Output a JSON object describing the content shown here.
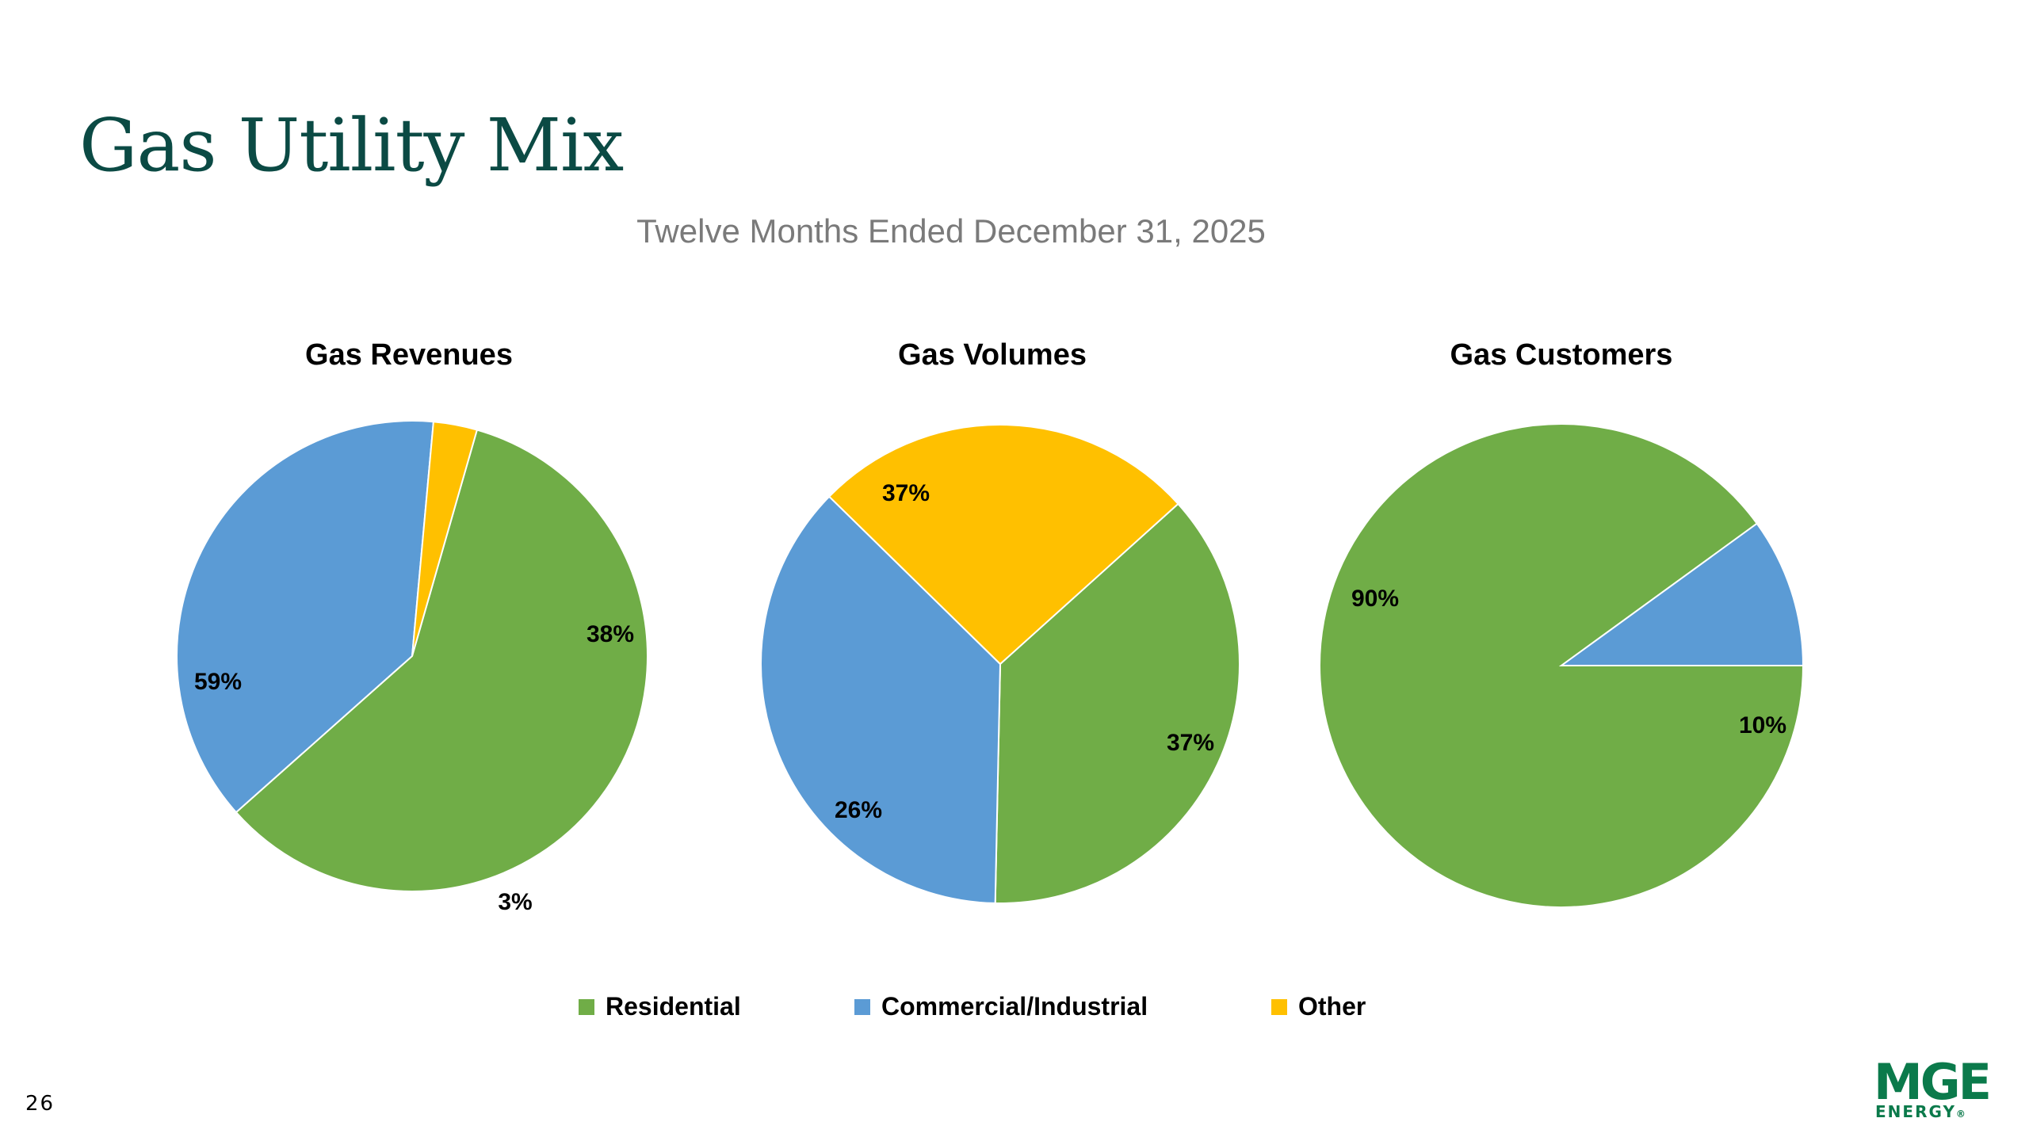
{
  "title": "Gas Utility Mix",
  "subtitle": "Twelve Months Ended December 31, 2025",
  "page_number": "26",
  "logo": {
    "line1": "MGE",
    "line2": "ENERGY",
    "trademark": "®"
  },
  "colors": {
    "residential": "#70ad47",
    "commercial_industrial": "#5b9bd5",
    "other": "#ffc000",
    "title": "#0b4a44",
    "logo": "#0b7a4b"
  },
  "legend": [
    {
      "label": "Residential",
      "color": "#70ad47"
    },
    {
      "label": "Commercial/Industrial",
      "color": "#5b9bd5"
    },
    {
      "label": "Other",
      "color": "#ffc000"
    }
  ],
  "chart_data": [
    {
      "type": "pie",
      "title": "Gas Revenues",
      "categories": [
        "Residential",
        "Commercial/Industrial",
        "Other"
      ],
      "values": [
        59,
        38,
        3
      ],
      "labels": [
        "59%",
        "38%",
        "3%"
      ]
    },
    {
      "type": "pie",
      "title": "Gas Volumes",
      "categories": [
        "Residential",
        "Commercial/Industrial",
        "Other"
      ],
      "values": [
        37,
        37,
        26
      ],
      "labels": [
        "37%",
        "37%",
        "26%"
      ]
    },
    {
      "type": "pie",
      "title": "Gas Customers",
      "categories": [
        "Residential",
        "Commercial/Industrial",
        "Other"
      ],
      "values": [
        90,
        10,
        0
      ],
      "labels": [
        "90%",
        "10%",
        ""
      ]
    }
  ]
}
